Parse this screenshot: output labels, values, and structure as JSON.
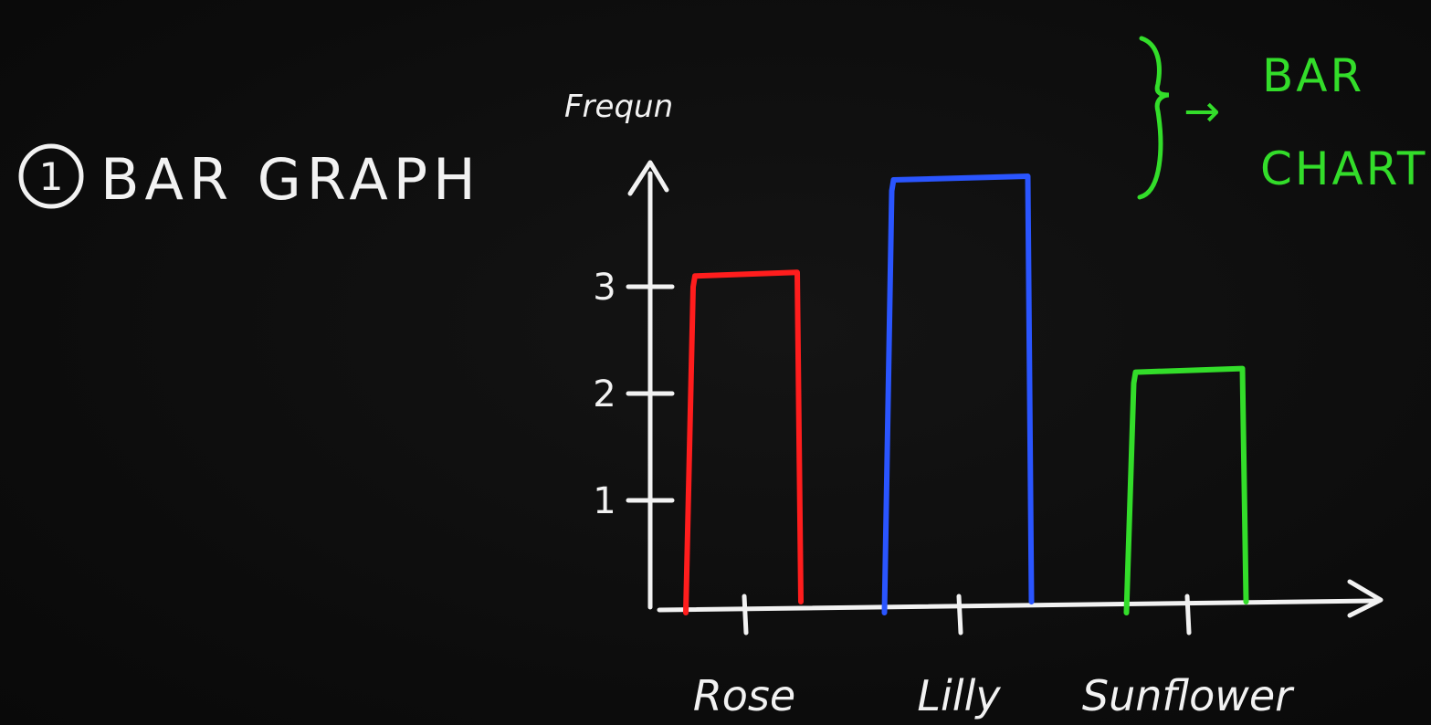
{
  "heading": {
    "number": "1",
    "title": "BAR GRAPH"
  },
  "side_note": {
    "arrow": "→",
    "text_line1": "BAR",
    "text_line2": "CHART",
    "color": "#33dd2a"
  },
  "chart_data": {
    "type": "bar",
    "ylabel": "Frequn",
    "xlabel": "",
    "categories": [
      "Rose",
      "Lilly",
      "Sunflower"
    ],
    "values": [
      3.1,
      4.0,
      2.2
    ],
    "colors": [
      "#ff1d1d",
      "#2a55ff",
      "#33dd2a"
    ],
    "yticks": [
      "1",
      "2",
      "3"
    ],
    "ylim": [
      0,
      4.5
    ],
    "grid": false
  }
}
